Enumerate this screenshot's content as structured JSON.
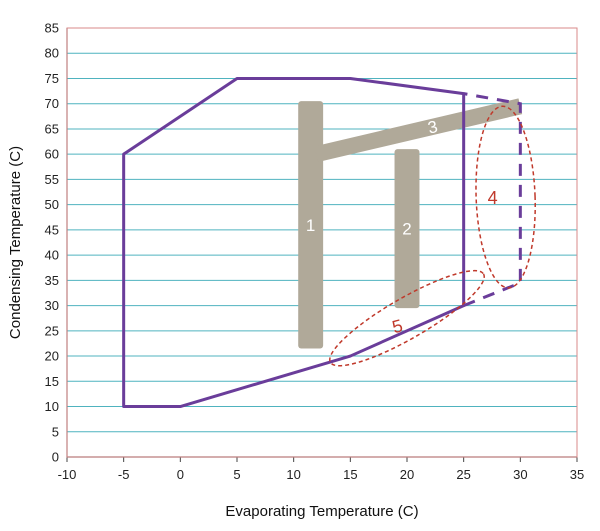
{
  "chart_data": {
    "type": "line",
    "xlabel": "Evaporating Temperature (C)",
    "ylabel": "Condensing Temperature (C)",
    "xlim": [
      -10,
      35
    ],
    "ylim": [
      0,
      85
    ],
    "x_ticks": [
      -10,
      -5,
      0,
      5,
      10,
      15,
      20,
      25,
      30,
      35
    ],
    "y_ticks": [
      0,
      5,
      10,
      15,
      20,
      25,
      30,
      35,
      40,
      45,
      50,
      55,
      60,
      65,
      70,
      75,
      80,
      85
    ],
    "grid": "horizontal",
    "colors": {
      "grid": "#4fb3bf",
      "frame": "#d98a8a",
      "envelope": "#6a3d9a",
      "bars": "#b0a999",
      "zones": "#c0392b"
    },
    "envelope": [
      {
        "x": -5,
        "y": 10
      },
      {
        "x": 0,
        "y": 10
      },
      {
        "x": 15,
        "y": 20
      },
      {
        "x": 25,
        "y": 30
      },
      {
        "x": 25,
        "y": 72
      },
      {
        "x": 15,
        "y": 75
      },
      {
        "x": 5,
        "y": 75
      },
      {
        "x": -5,
        "y": 60
      }
    ],
    "envelope_extension": [
      {
        "x": 25,
        "y": 30
      },
      {
        "x": 30,
        "y": 34.5
      },
      {
        "x": 30,
        "y": 70
      },
      {
        "x": 25,
        "y": 72
      }
    ],
    "bars": [
      {
        "label": "1",
        "x": 11.5,
        "y_min": 21.5,
        "y_max": 70.5,
        "width": 2.2
      },
      {
        "label": "2",
        "x": 20,
        "y_min": 29.5,
        "y_max": 61,
        "width": 2.2
      },
      {
        "label": "3",
        "x1": 12,
        "y1": 60,
        "x2": 30,
        "y2": 69.5,
        "width": 3.2
      }
    ],
    "zones": [
      {
        "label": "4",
        "cx": 28.7,
        "cy": 51.5,
        "rx": 2.6,
        "ry": 18,
        "rotation": -2
      },
      {
        "label": "5",
        "cx": 20,
        "cy": 27.5,
        "rx": 7.8,
        "ry": 4,
        "rotation": -30
      }
    ]
  }
}
